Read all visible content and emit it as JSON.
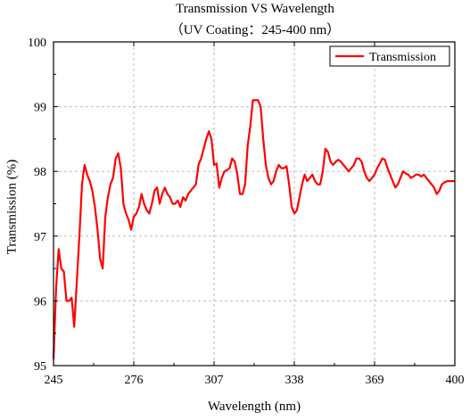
{
  "chart_data": {
    "type": "line",
    "title": "Transmission VS Wavelength",
    "subtitle": "（UV Coating：245-400 nm）",
    "xlabel": "Wavelength (nm)",
    "ylabel": "Transmission (%)",
    "xlim": [
      245,
      400
    ],
    "ylim": [
      95,
      100
    ],
    "xticks": [
      245,
      276,
      307,
      338,
      369,
      400
    ],
    "yticks": [
      95,
      96,
      97,
      98,
      99,
      100
    ],
    "grid": true,
    "legend_position": "top-right",
    "series": [
      {
        "name": "Transmission",
        "color": "#ff0000",
        "x": [
          245,
          246,
          247,
          248,
          249,
          250,
          251,
          252,
          253,
          254,
          255,
          256,
          257,
          258,
          259,
          260,
          261,
          262,
          263,
          264,
          265,
          266,
          267,
          268,
          269,
          270,
          271,
          272,
          273,
          274,
          275,
          276,
          277,
          278,
          279,
          280,
          281,
          282,
          283,
          284,
          285,
          286,
          287,
          288,
          289,
          290,
          291,
          292,
          293,
          294,
          295,
          296,
          297,
          298,
          299,
          300,
          301,
          302,
          303,
          304,
          305,
          306,
          307,
          308,
          309,
          310,
          311,
          312,
          313,
          314,
          315,
          316,
          317,
          318,
          319,
          320,
          321,
          322,
          323,
          324,
          325,
          326,
          327,
          328,
          329,
          330,
          331,
          332,
          333,
          334,
          335,
          336,
          337,
          338,
          339,
          340,
          341,
          342,
          343,
          344,
          345,
          346,
          347,
          348,
          349,
          350,
          351,
          352,
          353,
          354,
          355,
          356,
          357,
          358,
          359,
          360,
          361,
          362,
          363,
          364,
          365,
          366,
          367,
          368,
          369,
          370,
          371,
          372,
          373,
          374,
          375,
          376,
          377,
          378,
          379,
          380,
          381,
          382,
          383,
          384,
          385,
          386,
          387,
          388,
          389,
          390,
          391,
          392,
          393,
          394,
          395,
          396,
          397,
          398,
          399,
          400
        ],
        "values": [
          95.1,
          96.2,
          96.8,
          96.5,
          96.45,
          96.0,
          96.0,
          96.05,
          95.6,
          96.3,
          97.0,
          97.8,
          98.1,
          97.95,
          97.85,
          97.7,
          97.45,
          97.1,
          96.65,
          96.5,
          97.3,
          97.6,
          97.8,
          97.9,
          98.2,
          98.28,
          98.05,
          97.5,
          97.35,
          97.25,
          97.1,
          97.3,
          97.35,
          97.45,
          97.65,
          97.5,
          97.4,
          97.35,
          97.5,
          97.7,
          97.75,
          97.5,
          97.65,
          97.75,
          97.65,
          97.6,
          97.5,
          97.5,
          97.55,
          97.45,
          97.6,
          97.55,
          97.65,
          97.7,
          97.75,
          97.8,
          98.1,
          98.2,
          98.35,
          98.5,
          98.62,
          98.5,
          98.1,
          98.12,
          97.75,
          97.9,
          98.0,
          98.02,
          98.05,
          98.2,
          98.15,
          97.95,
          97.65,
          97.65,
          97.8,
          98.4,
          98.7,
          99.1,
          99.1,
          99.1,
          99.0,
          98.5,
          98.1,
          97.9,
          97.8,
          97.85,
          98.0,
          98.1,
          98.05,
          98.05,
          98.08,
          97.8,
          97.45,
          97.35,
          97.4,
          97.6,
          97.8,
          97.95,
          97.85,
          97.9,
          97.95,
          97.85,
          97.8,
          97.8,
          98.0,
          98.35,
          98.3,
          98.15,
          98.1,
          98.15,
          98.18,
          98.15,
          98.1,
          98.05,
          98.0,
          98.05,
          98.1,
          98.2,
          98.2,
          98.15,
          98.0,
          97.9,
          97.85,
          97.9,
          97.95,
          98.05,
          98.12,
          98.2,
          98.18,
          98.05,
          97.95,
          97.85,
          97.75,
          97.8,
          97.9,
          98.0,
          97.97,
          97.95,
          97.9,
          97.92,
          97.95,
          97.95,
          97.92,
          97.95,
          97.9,
          97.85,
          97.8,
          97.75,
          97.65,
          97.7,
          97.8,
          97.83,
          97.85,
          97.85,
          97.85,
          97.85
        ]
      }
    ]
  }
}
